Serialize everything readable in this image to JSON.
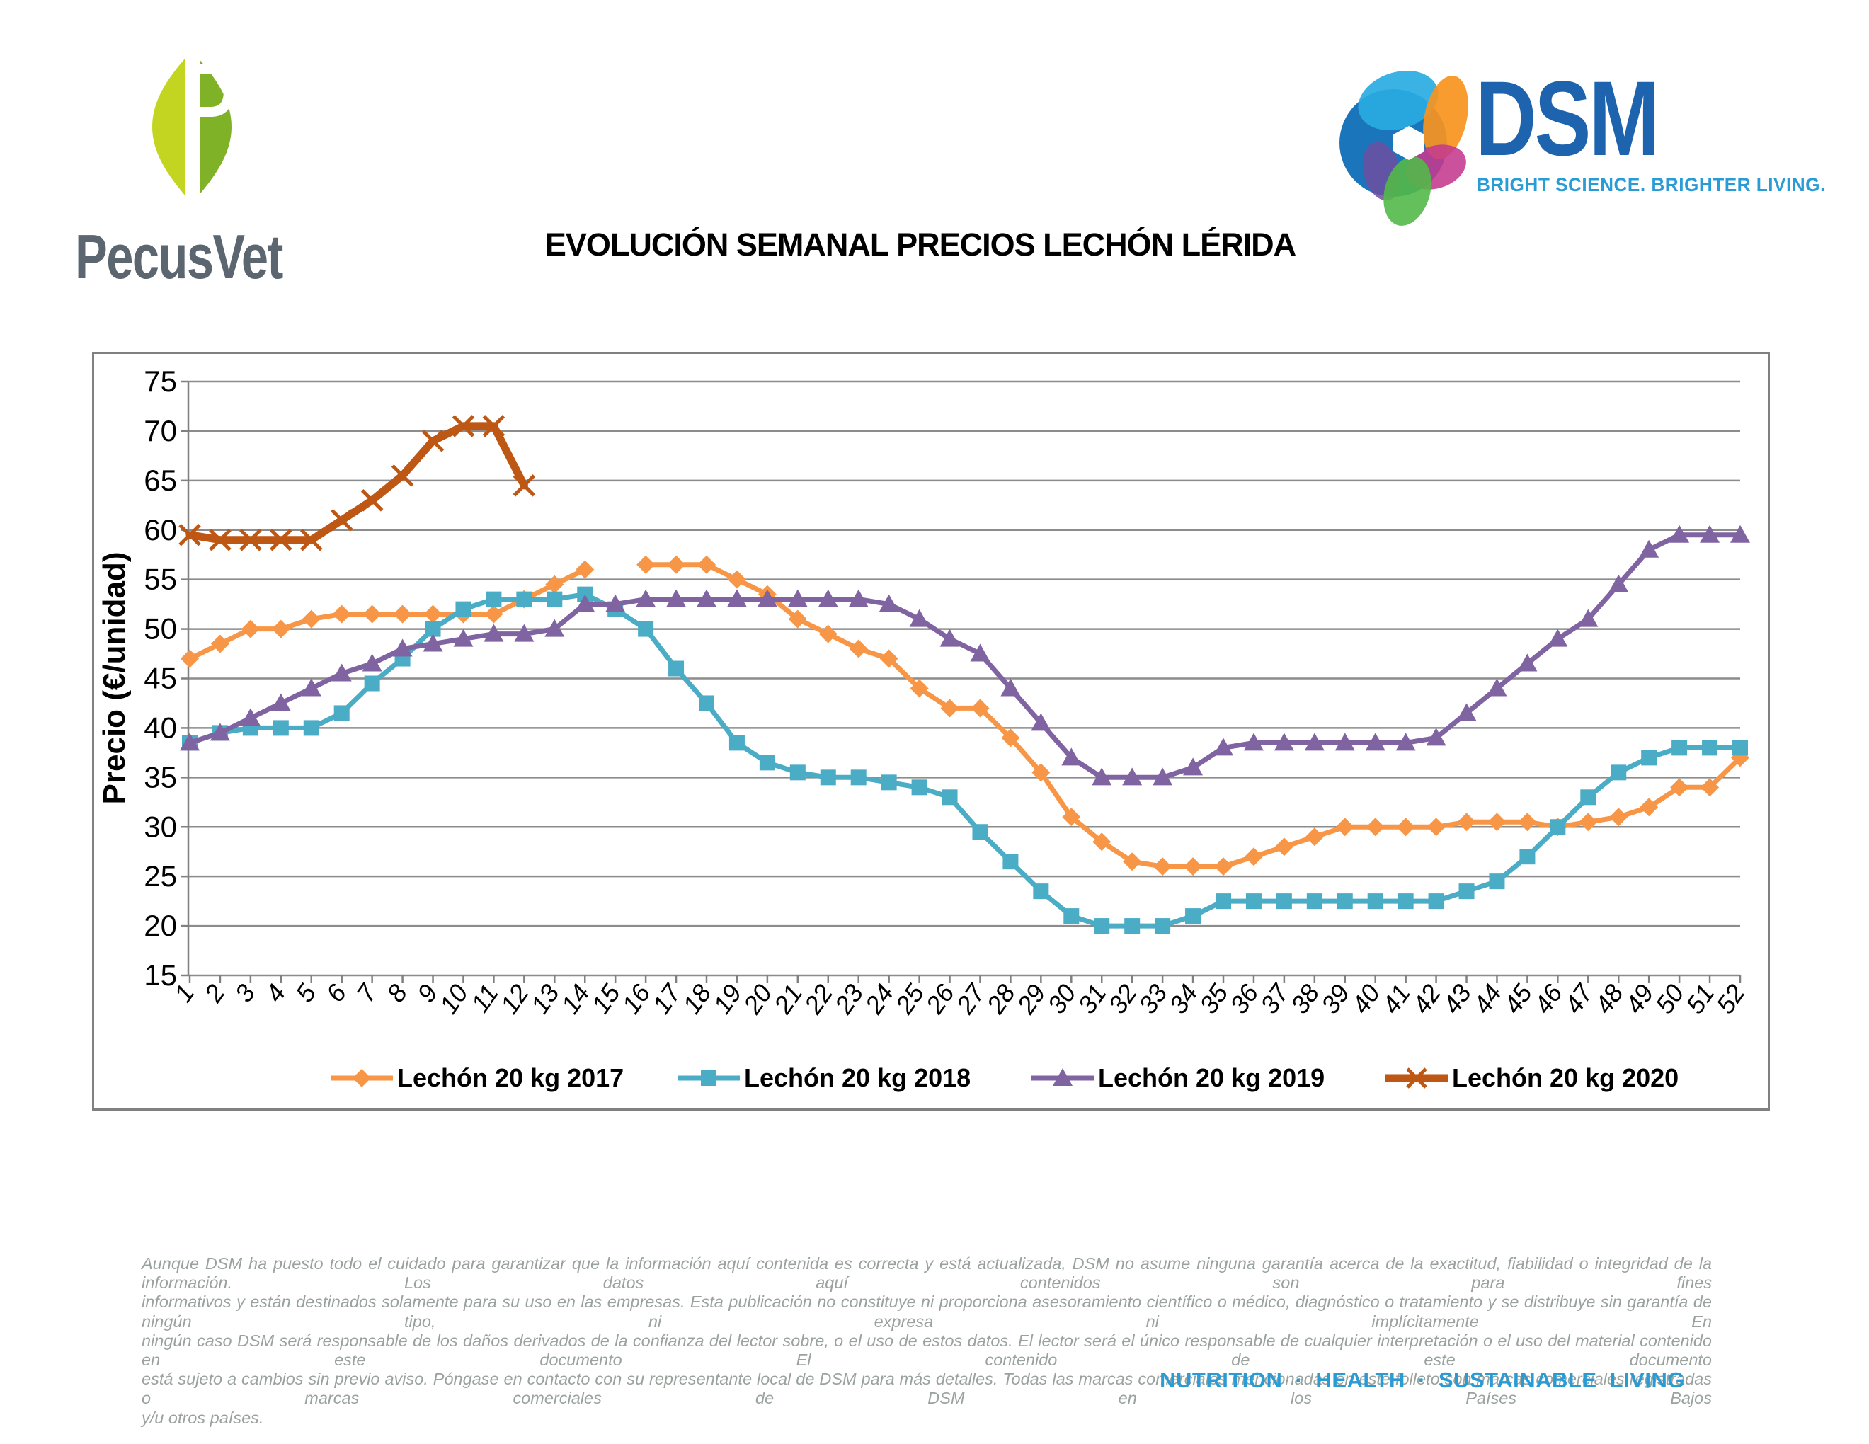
{
  "header": {
    "pecusvet_name": "PecusVet",
    "dsm_name": "DSM",
    "dsm_tagline": "BRIGHT SCIENCE. BRIGHTER LIVING.",
    "colors": {
      "pecus_leaf_left": "#c3d521",
      "pecus_leaf_right": "#7fb227",
      "pecus_text": "#5b6670",
      "dsm_blue": "#1e63ad",
      "dsm_light_blue": "#299cd6"
    }
  },
  "title": "EVOLUCIÓN SEMANAL PRECIOS LECHÓN LÉRIDA",
  "chart_data": {
    "type": "line",
    "title": "EVOLUCIÓN SEMANAL PRECIOS LECHÓN LÉRIDA",
    "xlabel": "",
    "ylabel": "Precio (€/unidad)",
    "ylim": [
      15,
      75
    ],
    "yticks": [
      15,
      20,
      25,
      30,
      35,
      40,
      45,
      50,
      55,
      60,
      65,
      70,
      75
    ],
    "x": [
      1,
      2,
      3,
      4,
      5,
      6,
      7,
      8,
      9,
      10,
      11,
      12,
      13,
      14,
      15,
      16,
      17,
      18,
      19,
      20,
      21,
      22,
      23,
      24,
      25,
      26,
      27,
      28,
      29,
      30,
      31,
      32,
      33,
      34,
      35,
      36,
      37,
      38,
      39,
      40,
      41,
      42,
      43,
      44,
      45,
      46,
      47,
      48,
      49,
      50,
      51,
      52
    ],
    "grid": true,
    "legend_position": "bottom-inside",
    "frame_color": "#808080",
    "grid_color": "#8c8c8c",
    "series": [
      {
        "name": "Lechón 20 kg 2017",
        "color": "#F79646",
        "marker": "diamond",
        "line_width": 7,
        "values": [
          47,
          48.5,
          50,
          50,
          51,
          51.5,
          51.5,
          51.5,
          51.5,
          51.5,
          51.5,
          53,
          54.5,
          56,
          null,
          56.5,
          56.5,
          56.5,
          55,
          53.5,
          51,
          49.5,
          48,
          47,
          44,
          42,
          42,
          39,
          35.5,
          31,
          28.5,
          26.5,
          26,
          26,
          26,
          27,
          28,
          29,
          30,
          30,
          30,
          30,
          30.5,
          30.5,
          30.5,
          30,
          30.5,
          31,
          32,
          34,
          34,
          37
        ]
      },
      {
        "name": "Lechón 20 kg 2018",
        "color": "#4BACC6",
        "marker": "square",
        "line_width": 7,
        "values": [
          38.5,
          39.5,
          40,
          40,
          40,
          41.5,
          44.5,
          47,
          50,
          52,
          53,
          53,
          53,
          53.5,
          52,
          50,
          46,
          42.5,
          38.5,
          36.5,
          35.5,
          35,
          35,
          34.5,
          34,
          33,
          29.5,
          26.5,
          23.5,
          21,
          20,
          20,
          20,
          21,
          22.5,
          22.5,
          22.5,
          22.5,
          22.5,
          22.5,
          22.5,
          22.5,
          23.5,
          24.5,
          27,
          30,
          33,
          35.5,
          37,
          38,
          38,
          38
        ]
      },
      {
        "name": "Lechón 20 kg 2019",
        "color": "#8064A2",
        "marker": "triangle",
        "line_width": 7,
        "values": [
          38.5,
          39.5,
          41,
          42.5,
          44,
          45.5,
          46.5,
          48,
          48.5,
          49,
          49.5,
          49.5,
          50,
          52.5,
          52.5,
          53,
          53,
          53,
          53,
          53,
          53,
          53,
          53,
          52.5,
          51,
          49,
          47.5,
          44,
          40.5,
          37,
          35,
          35,
          35,
          36,
          38,
          38.5,
          38.5,
          38.5,
          38.5,
          38.5,
          38.5,
          39,
          41.5,
          44,
          46.5,
          49,
          51,
          54.5,
          58,
          59.5,
          59.5,
          59.5
        ]
      },
      {
        "name": "Lechón 20 kg 2020",
        "color": "#BD5713",
        "marker": "x",
        "line_width": 11,
        "values": [
          59.5,
          59,
          59,
          59,
          59,
          61,
          63,
          65.5,
          69,
          70.5,
          70.5,
          64.5
        ]
      }
    ]
  },
  "footer": {
    "disclaimer_lines": [
      "Aunque DSM ha puesto todo el cuidado para garantizar que la información aquí contenida es correcta y está actualizada, DSM no asume ninguna garantía acerca de la exactitud, fiabilidad o integridad de la información. Los datos aquí contenidos son para fines",
      "informativos y están destinados solamente para su uso en las empresas. Esta publicación no constituye ni proporciona asesoramiento científico o médico, diagnóstico o tratamiento y se distribuye sin garantía de ningún tipo, ni expresa ni implícitamente En",
      "ningún caso DSM será responsable de los daños derivados de la confianza del lector sobre, o el uso de estos datos. El lector será el único responsable de cualquier interpretación o el uso del material contenido en este documento El contenido de este documento",
      "está sujeto a cambios sin previo aviso. Póngase en contacto con su representante local de DSM para más detalles. Todas las marcas comerciales mencionadas en este folleto son marcas comerciales registradas o marcas comerciales de DSM en los Países Bajos",
      "y/u otros países."
    ],
    "tagline": "NUTRITION · HEALTH · SUSTAINABLE LIVING"
  }
}
